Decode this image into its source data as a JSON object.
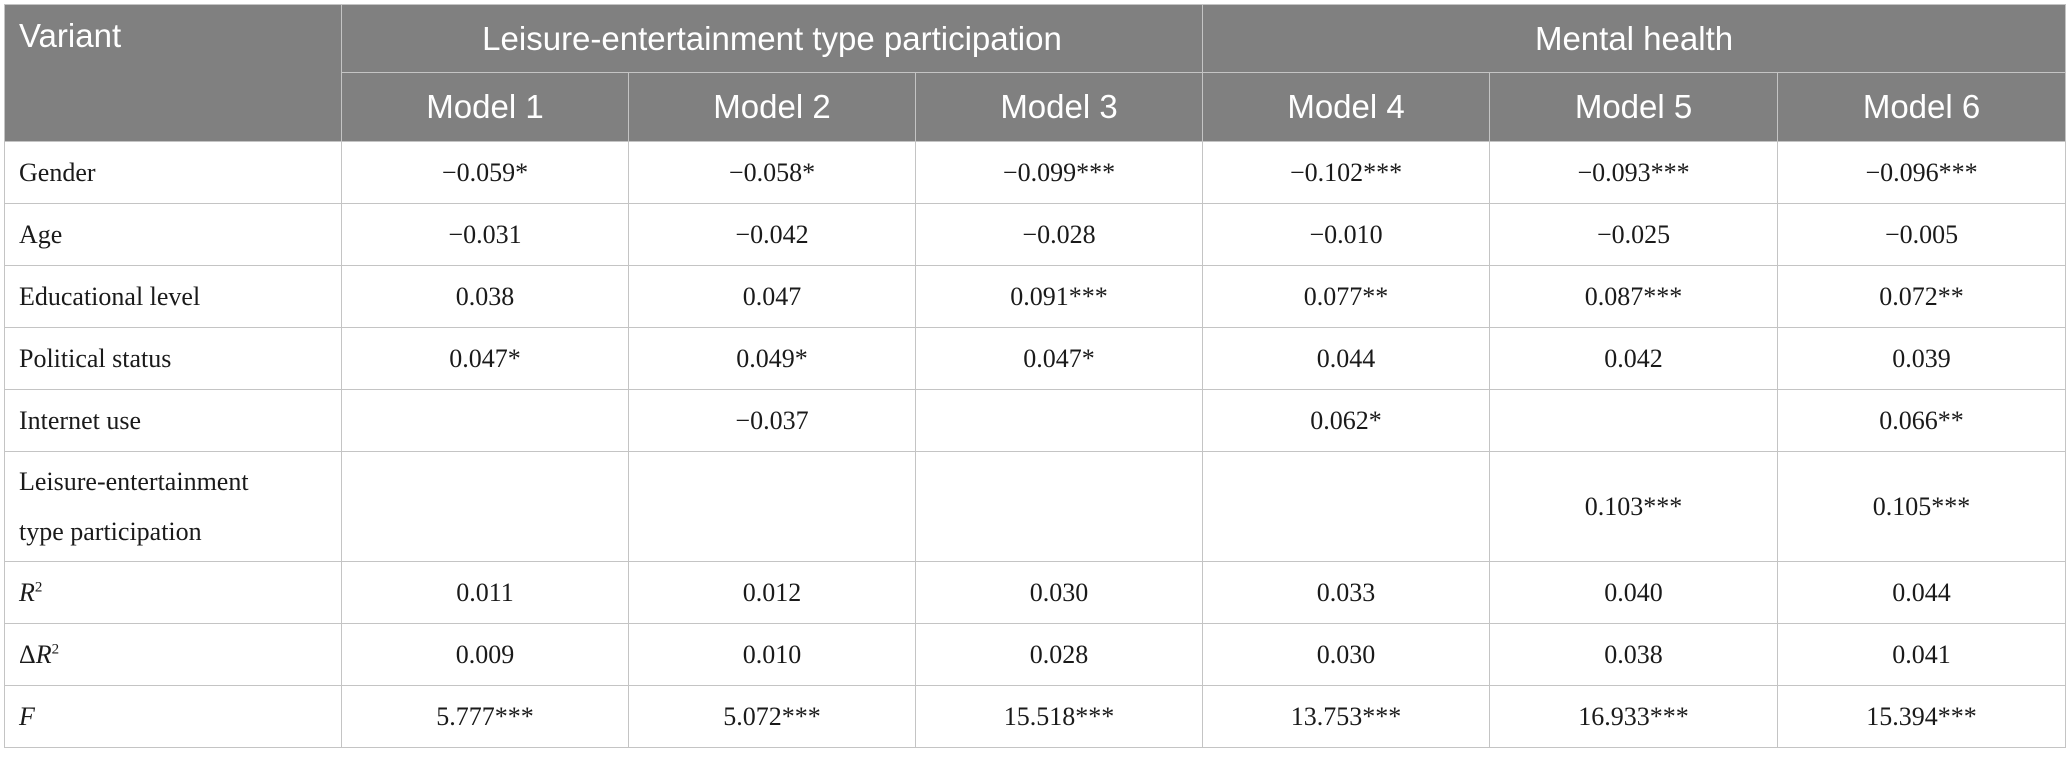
{
  "table": {
    "header": {
      "variant": "Variant",
      "group1": "Leisure-entertainment type participation",
      "group2": "Mental health",
      "models": [
        "Model 1",
        "Model 2",
        "Model 3",
        "Model 4",
        "Model 5",
        "Model 6"
      ]
    },
    "rows": [
      {
        "label": "Gender",
        "values": [
          "−0.059*",
          "−0.058*",
          "−0.099***",
          "−0.102***",
          "−0.093***",
          "−0.096***"
        ]
      },
      {
        "label": "Age",
        "values": [
          "−0.031",
          "−0.042",
          "−0.028",
          "−0.010",
          "−0.025",
          "−0.005"
        ]
      },
      {
        "label": "Educational level",
        "values": [
          "0.038",
          "0.047",
          "0.091***",
          "0.077**",
          "0.087***",
          "0.072**"
        ]
      },
      {
        "label": "Political status",
        "values": [
          "0.047*",
          "0.049*",
          "0.047*",
          "0.044",
          "0.042",
          "0.039"
        ]
      },
      {
        "label": "Internet use",
        "values": [
          "",
          "−0.037",
          "",
          "0.062*",
          "",
          "0.066**"
        ]
      },
      {
        "label_line1": "Leisure-entertainment",
        "label_line2": "type participation",
        "values": [
          "",
          "",
          "",
          "",
          "0.103***",
          "0.105***"
        ]
      },
      {
        "label_prefix": "",
        "label_var": "R",
        "label_sup": "2",
        "values": [
          "0.011",
          "0.012",
          "0.030",
          "0.033",
          "0.040",
          "0.044"
        ]
      },
      {
        "label_prefix": "Δ",
        "label_var": "R",
        "label_sup": "2",
        "values": [
          "0.009",
          "0.010",
          "0.028",
          "0.030",
          "0.038",
          "0.041"
        ]
      },
      {
        "label_var": "F",
        "values": [
          "5.777***",
          "5.072***",
          "15.518***",
          "13.753***",
          "16.933***",
          "15.394***"
        ]
      }
    ]
  }
}
